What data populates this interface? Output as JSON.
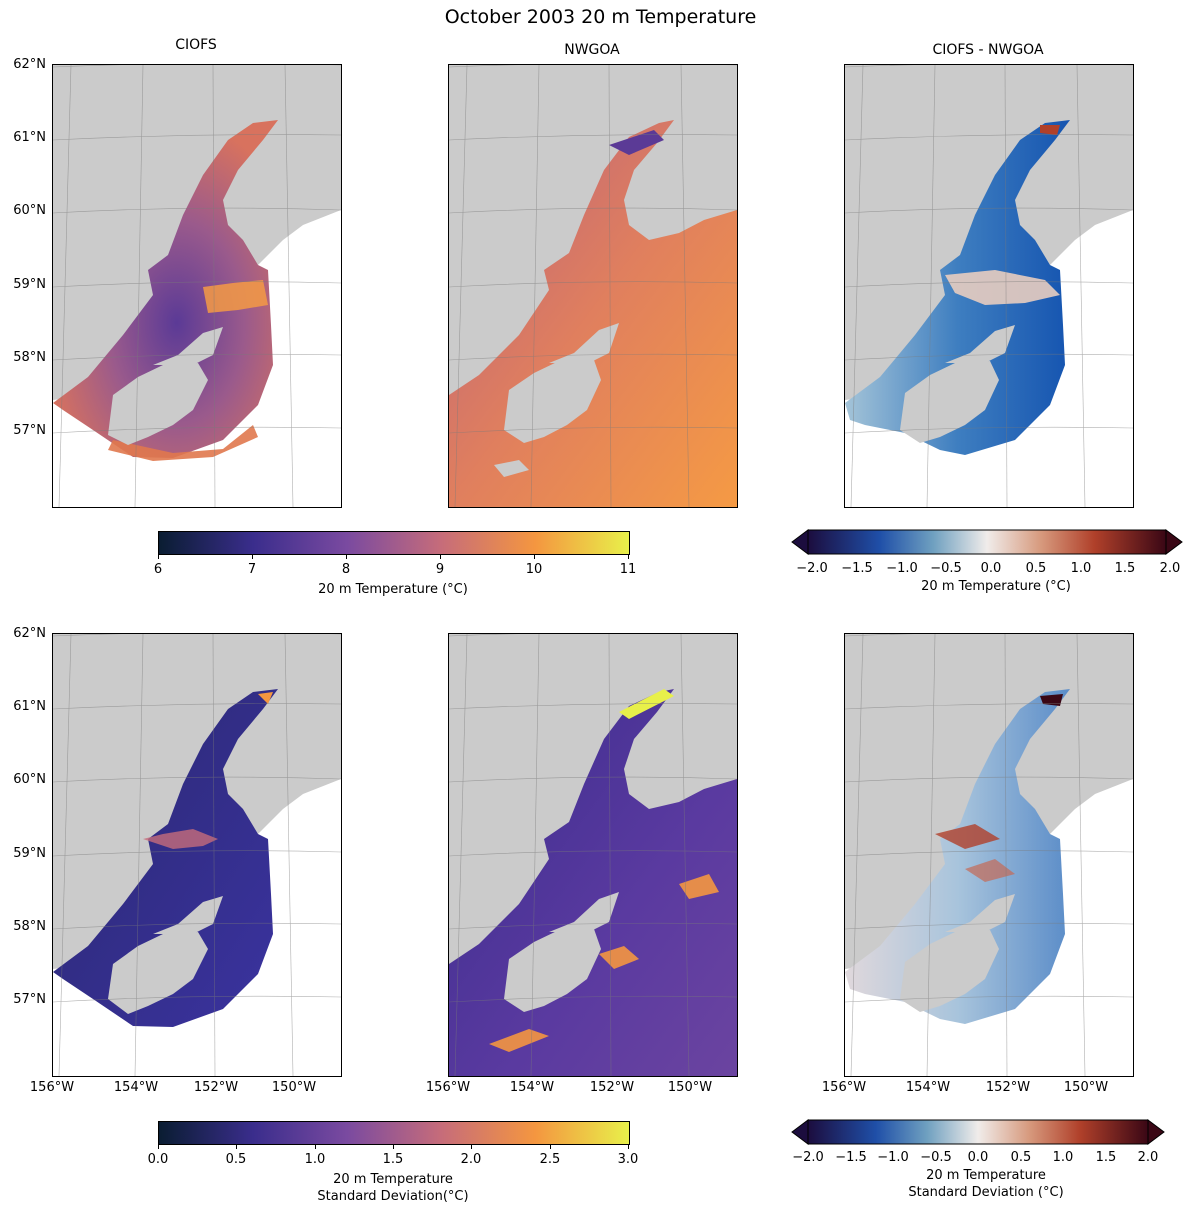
{
  "figure_title": "October 2003 20 m Temperature",
  "panel_titles": [
    "CIOFS",
    "NWGOA",
    "CIOFS - NWGOA"
  ],
  "lat_labels": [
    "62°N",
    "61°N",
    "60°N",
    "59°N",
    "58°N",
    "57°N"
  ],
  "lon_labels": [
    "156°W",
    "154°W",
    "152°W",
    "150°W"
  ],
  "colorbars": {
    "temp": {
      "ticks": [
        "6",
        "7",
        "8",
        "9",
        "10",
        "11"
      ],
      "label": "20 m Temperature (°C)"
    },
    "temp_diff": {
      "ticks": [
        "−2.0",
        "−1.5",
        "−1.0",
        "−0.5",
        "0.0",
        "0.5",
        "1.0",
        "1.5",
        "2.0"
      ],
      "label": "20 m Temperature (°C)"
    },
    "std": {
      "ticks": [
        "0.0",
        "0.5",
        "1.0",
        "1.5",
        "2.0",
        "2.5",
        "3.0"
      ],
      "label_line1": "20 m Temperature",
      "label_line2": "Standard Deviation(°C)"
    },
    "std_diff": {
      "ticks": [
        "−2.0",
        "−1.5",
        "−1.0",
        "−0.5",
        "0.0",
        "0.5",
        "1.0",
        "1.5",
        "2.0"
      ],
      "label_line1": "20 m Temperature",
      "label_line2": "Standard Deviation (°C)"
    }
  },
  "colors": {
    "land": "#cbcbcb",
    "thermal_low": "#0a1d32",
    "thermal_high": "#e8f04a",
    "balance_low": "#1c0d3e",
    "balance_mid": "#f0ecea",
    "balance_high": "#3a0715"
  }
}
